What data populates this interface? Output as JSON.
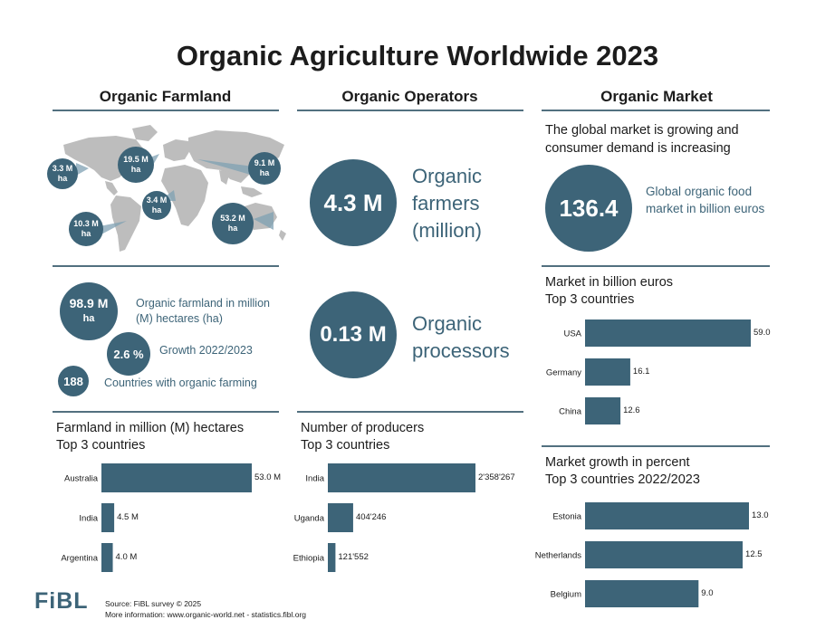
{
  "title": "Organic Agriculture Worldwide 2023",
  "colors": {
    "accent": "#3d6478",
    "map": "#bdbdbd",
    "rule": "#52707f"
  },
  "columns": {
    "farmland": "Organic Farmland",
    "operators": "Organic Operators",
    "market": "Organic Market"
  },
  "map": {
    "labels": [
      {
        "value": "3.3 M",
        "unit": "ha"
      },
      {
        "value": "19.5 M",
        "unit": "ha"
      },
      {
        "value": "9.1 M",
        "unit": "ha"
      },
      {
        "value": "3.4 M",
        "unit": "ha"
      },
      {
        "value": "10.3 M",
        "unit": "ha"
      },
      {
        "value": "53.2 M",
        "unit": "ha"
      }
    ]
  },
  "farmland_stats": {
    "area_value": "98.9 M",
    "area_unit": "ha",
    "area_label": "Organic farmland in million (M) hectares (ha)",
    "growth_value": "2.6 %",
    "growth_label": "Growth 2022/2023",
    "countries_value": "188",
    "countries_label": "Countries with organic farming"
  },
  "operators": {
    "farmers_value": "4.3 M",
    "farmers_label": "Organic farmers (million)",
    "processors_value": "0.13 M",
    "processors_label": "Organic processors"
  },
  "market": {
    "intro": "The global market is growing and consumer demand is increasing",
    "value": "136.4",
    "label": "Global organic food market in billion euros"
  },
  "chart_data": [
    {
      "type": "bar",
      "orientation": "horizontal",
      "title": "Farmland in million (M) hectares Top 3 countries",
      "categories": [
        "Australia",
        "India",
        "Argentina"
      ],
      "values": [
        53.0,
        4.5,
        4.0
      ],
      "value_labels": [
        "53.0 M",
        "4.5 M",
        "4.0 M"
      ]
    },
    {
      "type": "bar",
      "orientation": "horizontal",
      "title": "Number of producers Top 3 countries",
      "categories": [
        "India",
        "Uganda",
        "Ethiopia"
      ],
      "values": [
        2358267,
        404246,
        121552
      ],
      "value_labels": [
        "2'358'267",
        "404'246",
        "121'552"
      ]
    },
    {
      "type": "bar",
      "orientation": "horizontal",
      "title": "Market in billion euros Top 3 countries",
      "categories": [
        "USA",
        "Germany",
        "China"
      ],
      "values": [
        59.0,
        16.1,
        12.6
      ],
      "value_labels": [
        "59.0",
        "16.1",
        "12.6"
      ]
    },
    {
      "type": "bar",
      "orientation": "horizontal",
      "title": "Market growth in percent Top 3 countries 2022/2023",
      "categories": [
        "Estonia",
        "Netherlands",
        "Belgium"
      ],
      "values": [
        13.0,
        12.5,
        9.0
      ],
      "value_labels": [
        "13.0",
        "12.5",
        "9.0"
      ]
    }
  ],
  "chart_titles": [
    {
      "line1": "Farmland in million (M) hectares",
      "line2": "Top 3 countries"
    },
    {
      "line1": "Number of producers",
      "line2": "Top 3 countries"
    },
    {
      "line1": "Market in billion euros",
      "line2": "Top 3 countries"
    },
    {
      "line1": "Market growth in percent",
      "line2": "Top 3 countries 2022/2023"
    }
  ],
  "footer": {
    "logo": "FiBL",
    "source": "Source: FiBL survey © 2025",
    "more": "More information: www.organic-world.net - statistics.fibl.org"
  }
}
